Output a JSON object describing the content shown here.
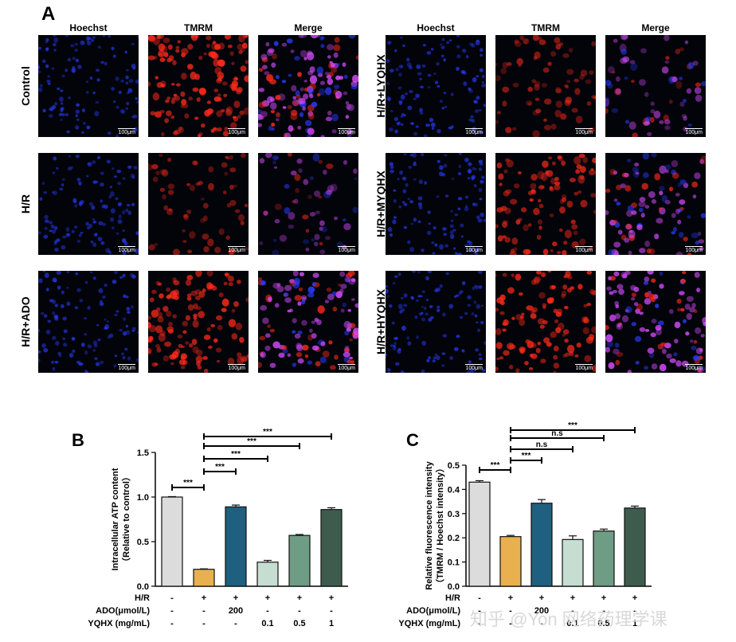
{
  "panel_a": {
    "letter": "A",
    "columns": [
      "Hoechst",
      "TMRM",
      "Merge"
    ],
    "left_rows": [
      "Control",
      "H/R",
      "H/R+ADO"
    ],
    "right_rows": [
      "H/R+LYQHX",
      "H/R+MYQHX",
      "H/R+HYQHX"
    ],
    "scale_bar": "100μm",
    "tmrm_intensity": {
      "Control": 1.0,
      "H/R": 0.45,
      "H/R+ADO": 0.85,
      "H/R+LYQHX": 0.5,
      "H/R+MYQHX": 0.7,
      "H/R+HYQHX": 0.8
    },
    "colors": {
      "hoechst": "#2a3cff",
      "tmrm": "#ff2a1a",
      "merge": "#d84cff",
      "background": "#02040a"
    }
  },
  "watermark": "知乎 @Yon 网络药理学课",
  "chart_data": [
    {
      "panel": "B",
      "type": "bar",
      "ylabel": "Intracellular ATP content",
      "ylabel2": "（Relative to control）",
      "ylim": [
        0,
        1.5
      ],
      "yticks": [
        "0.0",
        "0.5",
        "1.0",
        "1.5"
      ],
      "values": [
        1.0,
        0.19,
        0.89,
        0.27,
        0.57,
        0.86
      ],
      "errors": [
        0.005,
        0.005,
        0.02,
        0.02,
        0.01,
        0.02
      ],
      "colors": [
        "#dcdcdc",
        "#e8b04f",
        "#1f5f7f",
        "#c6ddd1",
        "#6e9c84",
        "#3e5c4e"
      ],
      "table": {
        "rows": [
          {
            "label": "H/R",
            "values": [
              "-",
              "+",
              "+",
              "+",
              "+",
              "+"
            ]
          },
          {
            "label": "ADO(μmol/L)",
            "values": [
              "-",
              "-",
              "200",
              "-",
              "-",
              "-"
            ]
          },
          {
            "label": "YQHX (mg/mL)",
            "values": [
              "-",
              "-",
              "-",
              "0.1",
              "0.5",
              "1"
            ]
          }
        ]
      },
      "brackets": [
        {
          "from": 0,
          "to": 1,
          "label": "***"
        },
        {
          "from": 1,
          "to": 2,
          "label": "***"
        },
        {
          "from": 1,
          "to": 3,
          "label": "***"
        },
        {
          "from": 1,
          "to": 4,
          "label": "***"
        },
        {
          "from": 1,
          "to": 5,
          "label": "***"
        }
      ]
    },
    {
      "panel": "C",
      "type": "bar",
      "ylabel": "Relative fluorescence intensity",
      "ylabel2": "（TMRM / Hoechst intensity）",
      "ylim": [
        0,
        0.5
      ],
      "yticks": [
        "0.0",
        "0.1",
        "0.2",
        "0.3",
        "0.4",
        "0.5"
      ],
      "values": [
        0.43,
        0.205,
        0.343,
        0.193,
        0.228,
        0.323
      ],
      "errors": [
        0.006,
        0.005,
        0.015,
        0.015,
        0.008,
        0.008
      ],
      "colors": [
        "#dcdcdc",
        "#e8b04f",
        "#1f5f7f",
        "#c6ddd1",
        "#6e9c84",
        "#3e5c4e"
      ],
      "table": {
        "rows": [
          {
            "label": "H/R",
            "values": [
              "-",
              "+",
              "+",
              "+",
              "+",
              "+"
            ]
          },
          {
            "label": "ADO(μmol/L)",
            "values": [
              "-",
              "-",
              "200",
              "-",
              "-",
              "-"
            ]
          },
          {
            "label": "YQHX (mg/mL)",
            "values": [
              "-",
              "-",
              "-",
              "0.1",
              "0.5",
              "1"
            ]
          }
        ]
      },
      "brackets": [
        {
          "from": 0,
          "to": 1,
          "label": "***"
        },
        {
          "from": 1,
          "to": 2,
          "label": "***"
        },
        {
          "from": 1,
          "to": 3,
          "label": "n.s"
        },
        {
          "from": 1,
          "to": 4,
          "label": "n.s"
        },
        {
          "from": 1,
          "to": 5,
          "label": "***"
        }
      ]
    }
  ]
}
